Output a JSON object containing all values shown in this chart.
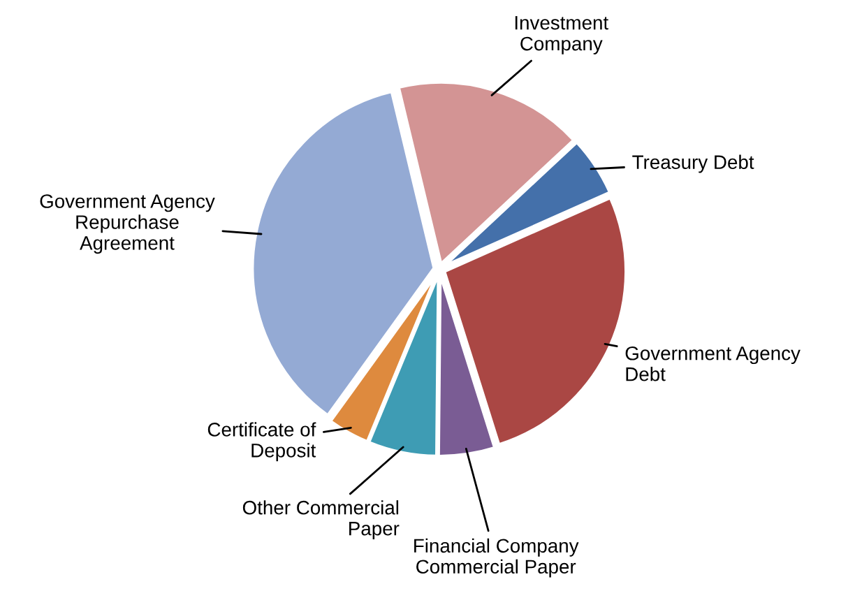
{
  "chart_data": {
    "type": "pie",
    "categories": [
      "Investment\nCompany",
      "Treasury Debt",
      "Government Agency\nDebt",
      "Financial Company\nCommercial Paper",
      "Other Commercial\nPaper",
      "Certificate of\nDeposit",
      "Government Agency\nRepurchase\nAgreement"
    ],
    "values": [
      16.8,
      5.3,
      26.8,
      5.0,
      6.1,
      3.7,
      36.3
    ],
    "colors": [
      "#d39494",
      "#4470aa",
      "#aa4744",
      "#7a5c94",
      "#3e9cb4",
      "#de8a3e",
      "#94aad4"
    ],
    "legend": false
  }
}
